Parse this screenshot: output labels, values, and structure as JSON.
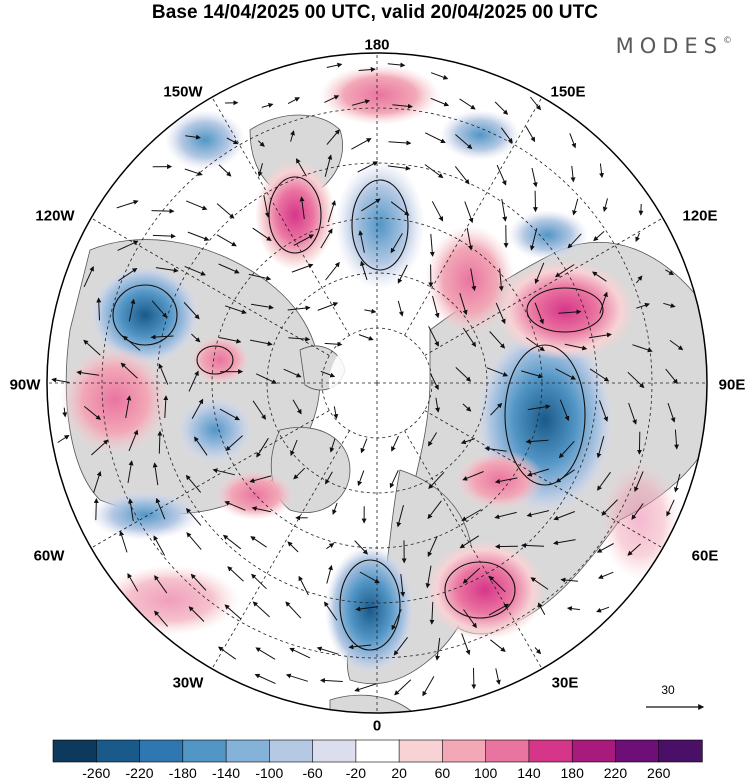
{
  "title": "Base 14/04/2025 00 UTC, valid 20/04/2025 00 UTC",
  "brand": "MODES",
  "brand_mark": "©",
  "longitude_labels": {
    "top": "180",
    "bottom": "0",
    "left": "90W",
    "right": "90E",
    "upper_left_1": "150W",
    "upper_left_2": "120W",
    "upper_right_1": "150E",
    "upper_right_2": "120E",
    "lower_left_1": "60W",
    "lower_left_2": "30W",
    "lower_right_1": "60E",
    "lower_right_2": "30E"
  },
  "reference_vector": {
    "label": "30"
  },
  "colorbar": {
    "labels": [
      "-260",
      "-220",
      "-180",
      "-140",
      "-100",
      "-60",
      "-20",
      "20",
      "60",
      "100",
      "140",
      "180",
      "220",
      "260"
    ],
    "colors": [
      "#0d3a5c",
      "#1a5a8a",
      "#2e77b0",
      "#5296c6",
      "#85b2d8",
      "#b5c9e4",
      "#dcdeee",
      "#ffffff",
      "#f7d3d5",
      "#f2a8b7",
      "#ea74a0",
      "#d6368a",
      "#a81b7c",
      "#6e0f78",
      "#4a1068"
    ]
  },
  "colors": {
    "land": "#d9d9d9",
    "ocean": "#ffffff",
    "coast": "#555555"
  }
}
